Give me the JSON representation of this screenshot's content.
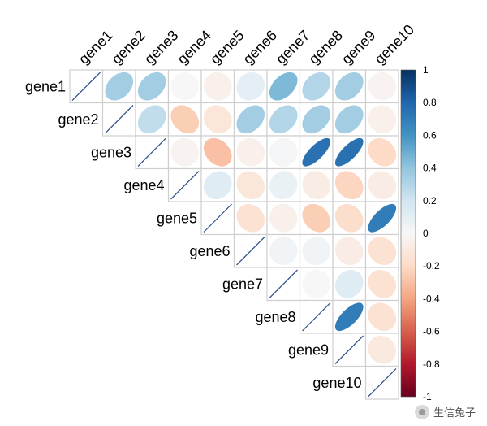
{
  "chart_data": {
    "type": "heatmap",
    "style": "ellipse correlation plot, upper triangle, diagonal shown as line",
    "genes": [
      "gene1",
      "gene2",
      "gene3",
      "gene4",
      "gene5",
      "gene6",
      "gene7",
      "gene8",
      "gene9",
      "gene10"
    ],
    "matrix": [
      [
        1,
        0.35,
        0.35,
        0.0,
        -0.05,
        0.1,
        0.45,
        0.3,
        0.35,
        -0.03
      ],
      [
        0.35,
        1,
        0.25,
        -0.25,
        -0.12,
        0.35,
        0.3,
        0.35,
        0.35,
        -0.05
      ],
      [
        0.35,
        0.25,
        1,
        -0.03,
        -0.3,
        -0.05,
        0.02,
        0.75,
        0.75,
        -0.2
      ],
      [
        0.0,
        -0.25,
        -0.03,
        1,
        0.12,
        -0.12,
        0.07,
        -0.08,
        -0.22,
        -0.08
      ],
      [
        -0.05,
        -0.12,
        -0.3,
        0.12,
        1,
        -0.15,
        -0.05,
        -0.25,
        -0.18,
        0.7
      ],
      [
        0.1,
        0.35,
        -0.05,
        -0.12,
        -0.15,
        1,
        0.03,
        0.03,
        -0.08,
        -0.15
      ],
      [
        0.45,
        0.3,
        0.02,
        0.07,
        -0.05,
        0.03,
        1,
        0.0,
        0.12,
        -0.15
      ],
      [
        0.3,
        0.35,
        0.75,
        -0.08,
        -0.25,
        0.03,
        0.0,
        1,
        0.7,
        -0.15
      ],
      [
        0.35,
        0.35,
        0.75,
        -0.22,
        -0.18,
        -0.08,
        0.12,
        0.7,
        1,
        -0.1
      ],
      [
        -0.03,
        -0.05,
        -0.2,
        -0.08,
        0.7,
        -0.15,
        -0.15,
        -0.15,
        -0.1,
        1
      ]
    ],
    "legend": {
      "ticks": [
        "1",
        "0.8",
        "0.6",
        "0.4",
        "0.2",
        "0",
        "-0.2",
        "-0.4",
        "-0.6",
        "-0.8",
        "-1"
      ],
      "range": [
        -1,
        1
      ],
      "placement": "right"
    },
    "colors": {
      "neg": "#67001F",
      "negmid": "#D6604D",
      "mid": "#F7F7F7",
      "posmid": "#4393C3",
      "pos": "#053061",
      "grid": "#cccccc",
      "diag": "#3b5b8c"
    }
  },
  "watermark": {
    "text": "生信兔子"
  }
}
